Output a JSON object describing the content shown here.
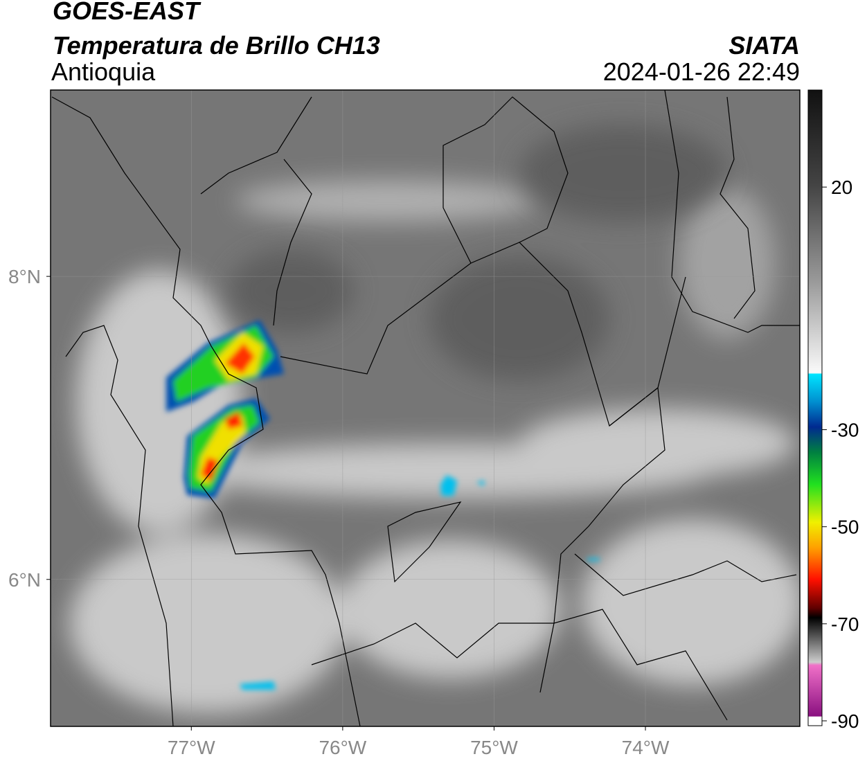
{
  "header": {
    "title": "GOES-EAST",
    "subtitle": "Temperatura de Brillo CH13",
    "region": "Antioquia",
    "source": "SIATA",
    "datetime": "2024-01-26 22:49"
  },
  "map": {
    "xlim": [
      -77.93,
      -72.98
    ],
    "ylim": [
      5.03,
      9.23
    ],
    "xticks": [
      {
        "value": -77,
        "label": "77°W"
      },
      {
        "value": -76,
        "label": "76°W"
      },
      {
        "value": -75,
        "label": "75°W"
      },
      {
        "value": -74,
        "label": "74°W"
      }
    ],
    "yticks": [
      {
        "value": 8,
        "label": "8°N"
      },
      {
        "value": 6,
        "label": "6°N"
      }
    ],
    "grid": true
  },
  "colorbar": {
    "lim": [
      -91,
      40
    ],
    "ticks": [
      20,
      -30,
      -50,
      -70,
      -90
    ]
  }
}
